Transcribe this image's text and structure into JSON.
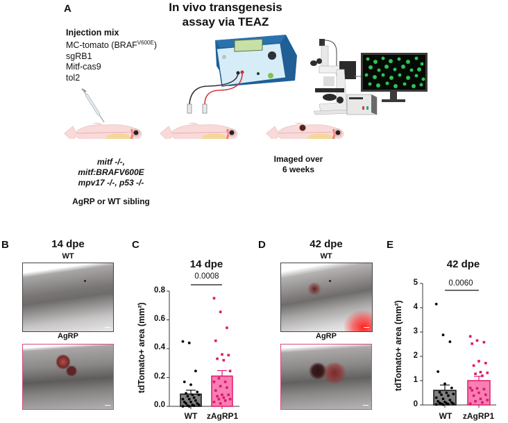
{
  "panel_a": {
    "letter": "A",
    "title_line1": "In vivo transgenesis",
    "title_line2": "assay via TEAZ",
    "injection_mix": {
      "heading": "Injection mix",
      "item1_main": "MC-tomato (BRAF",
      "item1_sup": "V600E",
      "item1_end": ")",
      "item2": "sgRB1",
      "item3": "Mitf-cas9",
      "item4": "tol2"
    },
    "genotype": {
      "line1": "mitf -/-,",
      "line2": "mitf:BRAFV600E",
      "line3": "mpv17 -/-, p53 -/-"
    },
    "group_label": "AgRP or WT sibling",
    "imaging_line1": "Imaged over",
    "imaging_line2": "6 weeks",
    "icons": [
      "syringe-icon",
      "zebrafish-icon",
      "electroporator-icon",
      "electrodes-icon",
      "microscope-icon",
      "monitor-icon",
      "tumor-fish-icon"
    ]
  },
  "panel_b": {
    "letter": "B",
    "timepoint": "14 dpe",
    "top_label": "WT",
    "bottom_label": "AgRP"
  },
  "panel_d": {
    "letter": "D",
    "timepoint": "42 dpe",
    "top_label": "WT",
    "bottom_label": "AgRP"
  },
  "colors": {
    "wt_bar": "#808080",
    "agrp_bar": "#f77fb3",
    "agrp_edge": "#e0186b",
    "agrp_frame": "#d9487f",
    "wt_points": "#000000",
    "agrp_points": "#e0186b"
  },
  "chart_data": [
    {
      "panel": "C",
      "type": "bar",
      "title": "14 dpe",
      "xlabel": "",
      "ylabel": "tdTomato+ area (mm²)",
      "ylim": [
        0,
        0.8
      ],
      "yticks": [
        "0.0",
        "0.2",
        "0.4",
        "0.6",
        "0.8"
      ],
      "categories": [
        "WT",
        "zAgRP1"
      ],
      "values": [
        0.085,
        0.21
      ],
      "sem": [
        0.027,
        0.038
      ],
      "pvalue": "0.0008",
      "points": {
        "WT": [
          0.45,
          0.44,
          0.245,
          0.17,
          0.15,
          0.1,
          0.09,
          0.08,
          0.08,
          0.07,
          0.06,
          0.05,
          0.05,
          0.04,
          0.03,
          0.03,
          0.02,
          0.02,
          0.01,
          0.01,
          0.005,
          0.005,
          0.0,
          0.0
        ],
        "zAgRP1": [
          0.75,
          0.655,
          0.545,
          0.455,
          0.36,
          0.355,
          0.33,
          0.32,
          0.245,
          0.195,
          0.17,
          0.17,
          0.14,
          0.13,
          0.11,
          0.08,
          0.08,
          0.07,
          0.06,
          0.05,
          0.05,
          0.04,
          0.03,
          0.02
        ]
      }
    },
    {
      "panel": "E",
      "type": "bar",
      "title": "42 dpe",
      "xlabel": "",
      "ylabel": "tdTomato+ area (mm²)",
      "ylim": [
        0,
        5
      ],
      "yticks": [
        "0",
        "1",
        "2",
        "3",
        "4",
        "5"
      ],
      "categories": [
        "WT",
        "zAgRP1"
      ],
      "values": [
        0.6,
        1.0
      ],
      "sem": [
        0.22,
        0.18
      ],
      "pvalue": "0.0060",
      "points": {
        "WT": [
          4.15,
          2.88,
          2.6,
          1.37,
          0.87,
          0.7,
          0.52,
          0.5,
          0.45,
          0.42,
          0.38,
          0.3,
          0.25,
          0.2,
          0.15,
          0.12,
          0.1,
          0.08,
          0.07,
          0.05,
          0.05,
          0.03,
          0.02,
          0.01
        ],
        "zAgRP1": [
          2.82,
          2.65,
          2.58,
          2.52,
          1.8,
          1.72,
          1.62,
          1.35,
          1.32,
          1.28,
          1.2,
          0.7,
          0.68,
          0.65,
          0.6,
          0.5,
          0.42,
          0.38,
          0.25,
          0.2,
          0.15,
          0.1,
          0.05
        ]
      }
    }
  ]
}
